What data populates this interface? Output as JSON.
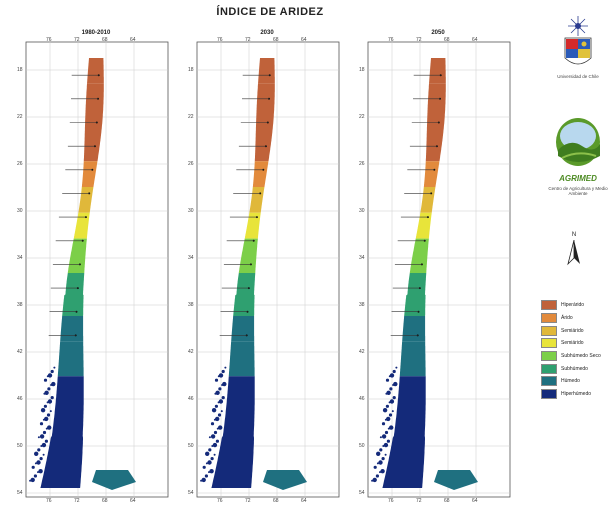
{
  "title": "ÍNDICE DE ARIDEZ",
  "panels": [
    {
      "label": "1980-2010"
    },
    {
      "label": "2030"
    },
    {
      "label": "2050"
    }
  ],
  "lon_ticks": [
    "76",
    "72",
    "68",
    "64"
  ],
  "lat_ticks": [
    "18",
    "22",
    "26",
    "30",
    "34",
    "38",
    "42",
    "46",
    "50",
    "54"
  ],
  "legend": [
    {
      "label": "Hiperárido",
      "color": "#c0623a"
    },
    {
      "label": "Árido",
      "color": "#e28a3c"
    },
    {
      "label": "Semiárido",
      "color": "#e0b83a"
    },
    {
      "label": "Semiárido",
      "color": "#e8e43a"
    },
    {
      "label": "Subhúmedo Seco",
      "color": "#7ccf49"
    },
    {
      "label": "Subhúmedo",
      "color": "#2fa070"
    },
    {
      "label": "Húmedo",
      "color": "#1f7080"
    },
    {
      "label": "Hiperhúmedo",
      "color": "#142a7a"
    }
  ],
  "logos": {
    "university": "Universidad de Chile",
    "agrimed_name": "AGRIMED",
    "agrimed_caption": "Centro de Agricultura y Medio Ambiente",
    "north_label": "N"
  }
}
